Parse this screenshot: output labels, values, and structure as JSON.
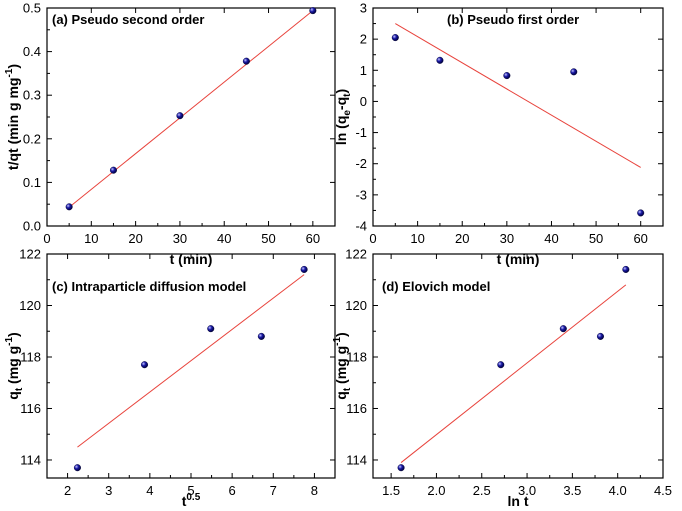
{
  "chart_data": [
    {
      "type": "scatter",
      "title": "(a) Pseudo second order",
      "xlabel": "t (min)",
      "ylabel": {
        "main": "t/qt (min g mg",
        "sup": "-1",
        "end": ")"
      },
      "xlim": [
        0,
        65
      ],
      "ylim": [
        0,
        0.5
      ],
      "xticks": [
        0,
        10,
        20,
        30,
        40,
        50,
        60
      ],
      "yticks": [
        0.0,
        0.1,
        0.2,
        0.3,
        0.4,
        0.5
      ],
      "xtick_labels": [
        "0",
        "10",
        "20",
        "30",
        "40",
        "50",
        "60"
      ],
      "ytick_labels": [
        "0.0",
        "0.1",
        "0.2",
        "0.3",
        "0.4",
        "0.5"
      ],
      "points": {
        "x": [
          5,
          15,
          30,
          45,
          60
        ],
        "y": [
          0.044,
          0.128,
          0.253,
          0.378,
          0.494
        ]
      },
      "fit_line": {
        "x": [
          5,
          60
        ],
        "y": [
          0.043,
          0.494
        ]
      },
      "marker_color": "#1a1aa8",
      "line_color": "#e8433c"
    },
    {
      "type": "scatter",
      "title": "(b) Pseudo first order",
      "xlabel": "t (min)",
      "ylabel": {
        "main": "ln (q",
        "sub1": "e",
        "mid": "-q",
        "sub2": "t",
        "end": ")"
      },
      "xlim": [
        0,
        65
      ],
      "ylim": [
        -4,
        3
      ],
      "xticks": [
        0,
        10,
        20,
        30,
        40,
        50,
        60
      ],
      "yticks": [
        -4,
        -3,
        -2,
        -1,
        0,
        1,
        2,
        3
      ],
      "xtick_labels": [
        "0",
        "10",
        "20",
        "30",
        "40",
        "50",
        "60"
      ],
      "ytick_labels": [
        "-4",
        "-3",
        "-2",
        "-1",
        "0",
        "1",
        "2",
        "3"
      ],
      "points": {
        "x": [
          5,
          15,
          30,
          45,
          60
        ],
        "y": [
          2.05,
          1.32,
          0.83,
          0.95,
          -3.58
        ]
      },
      "fit_line": {
        "x": [
          5,
          60
        ],
        "y": [
          2.5,
          -2.12
        ]
      },
      "marker_color": "#1a1aa8",
      "line_color": "#e8433c"
    },
    {
      "type": "scatter",
      "title": "(c) Intraparticle diffusion model",
      "xlabel": {
        "main": "t",
        "sup": "0.5"
      },
      "ylabel": {
        "main": "q",
        "sub": "t",
        "end": " (mg g",
        "sup": "-1",
        "close": ")"
      },
      "xlim": [
        1.5,
        8.5
      ],
      "ylim": [
        113.3,
        122
      ],
      "xticks": [
        2,
        3,
        4,
        5,
        6,
        7,
        8
      ],
      "yticks": [
        114,
        116,
        118,
        120,
        122
      ],
      "xtick_labels": [
        "2",
        "3",
        "4",
        "5",
        "6",
        "7",
        "8"
      ],
      "ytick_labels": [
        "114",
        "116",
        "118",
        "120",
        "122"
      ],
      "points": {
        "x": [
          2.24,
          3.87,
          5.48,
          6.71,
          7.75
        ],
        "y": [
          113.7,
          117.7,
          119.1,
          118.8,
          121.4
        ]
      },
      "fit_line": {
        "x": [
          2.24,
          7.75
        ],
        "y": [
          114.5,
          121.2
        ]
      },
      "marker_color": "#1a1aa8",
      "line_color": "#e8433c"
    },
    {
      "type": "scatter",
      "title": "(d) Elovich model",
      "xlabel": "ln t",
      "ylabel": {
        "main": "q",
        "sub": "t",
        "end": " (mg g",
        "sup": "-1",
        "close": ")"
      },
      "xlim": [
        1.3,
        4.5
      ],
      "ylim": [
        113.3,
        122
      ],
      "xticks": [
        1.5,
        2.0,
        2.5,
        3.0,
        3.5,
        4.0,
        4.5
      ],
      "yticks": [
        114,
        116,
        118,
        120,
        122
      ],
      "xtick_labels": [
        "1.5",
        "2.0",
        "2.5",
        "3.0",
        "3.5",
        "4.0",
        "4.5"
      ],
      "ytick_labels": [
        "114",
        "116",
        "118",
        "120",
        "122"
      ],
      "points": {
        "x": [
          1.61,
          2.71,
          3.4,
          3.81,
          4.09
        ],
        "y": [
          113.7,
          117.7,
          119.1,
          118.8,
          121.4
        ]
      },
      "fit_line": {
        "x": [
          1.61,
          4.09
        ],
        "y": [
          113.9,
          120.8
        ]
      },
      "marker_color": "#1a1aa8",
      "line_color": "#e8433c"
    }
  ]
}
